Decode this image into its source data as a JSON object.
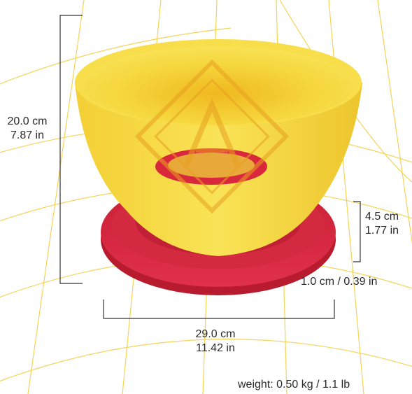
{
  "dimensions": {
    "height": {
      "metric": "20.0 cm",
      "imperial": "7.87 in"
    },
    "rim": {
      "metric": "4.5 cm",
      "imperial": "1.77 in"
    },
    "base": {
      "text": "1.0 cm / 0.39 in"
    },
    "width": {
      "metric": "29.0 cm",
      "imperial": "11.42 in"
    }
  },
  "weight": {
    "text": "weight: 0.50 kg / 1.1 lb"
  },
  "colors": {
    "bowl_yellow": "#f5d73a",
    "tray_red": "#d9283c",
    "grid_line": "#f2cc3a",
    "dimension_line": "#333333",
    "watermark": "#e8a020"
  },
  "icons": {
    "watermark": "diamond-monogram-watermark"
  }
}
